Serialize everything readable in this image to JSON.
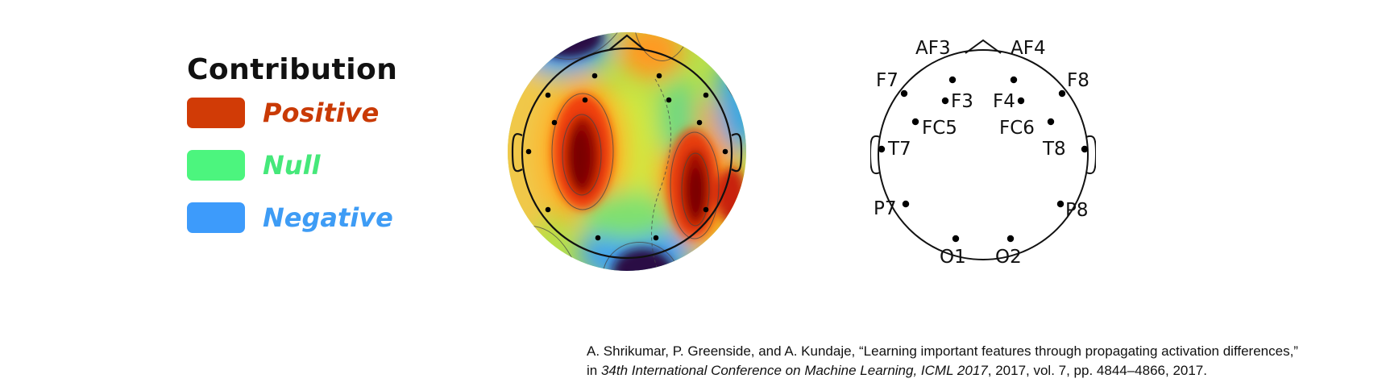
{
  "legend": {
    "title": "Contribution",
    "items": [
      {
        "label": "Positive",
        "color": "#d13b06",
        "text_color": "#c93a05"
      },
      {
        "label": "Null",
        "color": "#4cf57e",
        "text_color": "#45e87a"
      },
      {
        "label": "Negative",
        "color": "#3d9bfb",
        "text_color": "#3e9cf5"
      }
    ]
  },
  "topomap": {
    "colormap": "jet",
    "colors": {
      "high": "#800000",
      "mid_high": "#ff6a00",
      "mid": "#ffe000",
      "null": "#8fe05a",
      "low": "#2fa8e8",
      "lowest": "#2b0f44"
    }
  },
  "montage": {
    "electrodes": [
      {
        "name": "AF3"
      },
      {
        "name": "AF4"
      },
      {
        "name": "F7"
      },
      {
        "name": "F8"
      },
      {
        "name": "F3"
      },
      {
        "name": "F4"
      },
      {
        "name": "FC5"
      },
      {
        "name": "FC6"
      },
      {
        "name": "T7"
      },
      {
        "name": "T8"
      },
      {
        "name": "P7"
      },
      {
        "name": "P8"
      },
      {
        "name": "O1"
      },
      {
        "name": "O2"
      }
    ]
  },
  "citation": {
    "line1": "A. Shrikumar, P. Greenside, and A. Kundaje, “Learning important features through propagating activation differences,”",
    "line2_prefix": "in ",
    "line2_venue": "34th International Conference on Machine Learning, ICML 2017",
    "line2_suffix": ", 2017, vol. 7, pp. 4844–4866, 2017."
  }
}
